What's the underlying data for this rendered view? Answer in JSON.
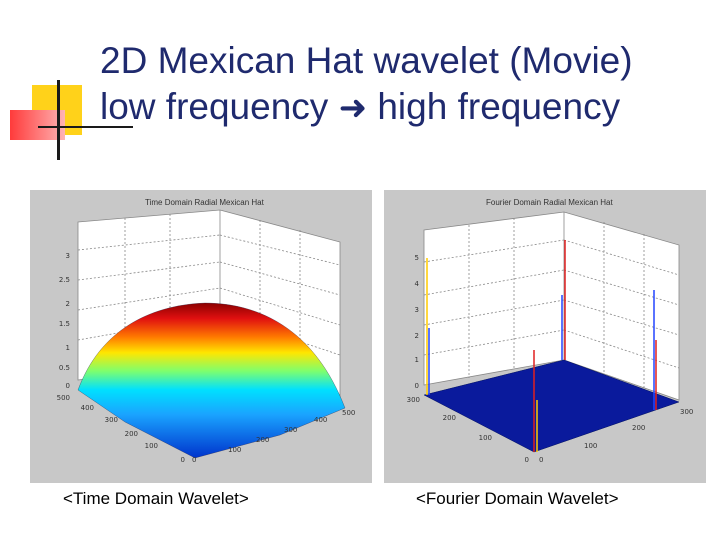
{
  "slide": {
    "title_line1": "2D Mexican Hat wavelet (Movie)",
    "title_line2_start": "low frequency",
    "title_line2_end": "high frequency",
    "arrow_icon": "right-arrow-icon",
    "accent_colors": {
      "title": "#1f2a6e",
      "yellow": "#ffd21a",
      "red": "#ff5a5a",
      "bar": "#1a1a1a"
    }
  },
  "time_panel": {
    "title": "Time Domain Radial Mexican Hat",
    "caption": "<Time Domain Wavelet>",
    "z_ticks": [
      "3",
      "2.5",
      "2",
      "1.5",
      "1",
      "0.5",
      "0"
    ],
    "x_ticks": [
      "0",
      "100",
      "200",
      "300",
      "400",
      "500"
    ],
    "y_ticks": [
      "0",
      "100",
      "200",
      "300",
      "400",
      "500"
    ]
  },
  "fourier_panel": {
    "title": "Fourier Domain Radial Mexican Hat",
    "caption": "<Fourier Domain Wavelet>",
    "z_ticks": [
      "5",
      "4",
      "3",
      "2",
      "1",
      "0"
    ],
    "x_ticks": [
      "0",
      "100",
      "200",
      "300"
    ],
    "y_ticks": [
      "0",
      "100",
      "200",
      "300"
    ]
  }
}
